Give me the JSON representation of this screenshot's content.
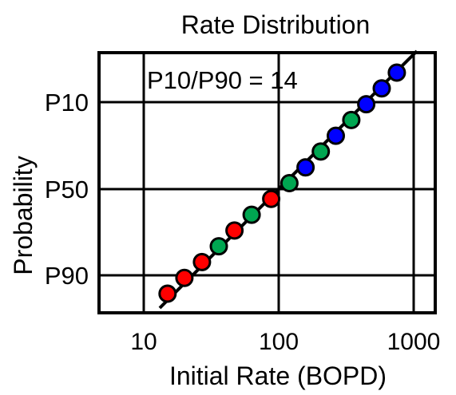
{
  "chart_data": {
    "type": "scatter",
    "title": "Rate Distribution",
    "xlabel": "Initial Rate (BOPD)",
    "ylabel": "Probability",
    "x_scale": "log",
    "xlim": [
      10,
      1000
    ],
    "x_ticks": [
      {
        "value": 10,
        "label": "10"
      },
      {
        "value": 100,
        "label": "100"
      },
      {
        "value": 1000,
        "label": "1000"
      }
    ],
    "y_scale": "probability",
    "y_ticks": [
      {
        "label": "P10"
      },
      {
        "label": "P50"
      },
      {
        "label": "P90"
      }
    ],
    "grid": true,
    "annotation": "P10/P90 = 14",
    "trend_line": true,
    "points": [
      {
        "rate": 15,
        "color": "#ff0000"
      },
      {
        "rate": 20,
        "color": "#ff0000"
      },
      {
        "rate": 27,
        "color": "#ff0000"
      },
      {
        "rate": 36,
        "color": "#00a651"
      },
      {
        "rate": 47,
        "color": "#ff0000"
      },
      {
        "rate": 63,
        "color": "#00a651"
      },
      {
        "rate": 88,
        "color": "#ff0000"
      },
      {
        "rate": 120,
        "color": "#00a651"
      },
      {
        "rate": 158,
        "color": "#0000ff"
      },
      {
        "rate": 205,
        "color": "#00a651"
      },
      {
        "rate": 265,
        "color": "#0000ff"
      },
      {
        "rate": 345,
        "color": "#00a651"
      },
      {
        "rate": 445,
        "color": "#0000ff"
      },
      {
        "rate": 580,
        "color": "#0000ff"
      },
      {
        "rate": 750,
        "color": "#0000ff"
      }
    ]
  }
}
